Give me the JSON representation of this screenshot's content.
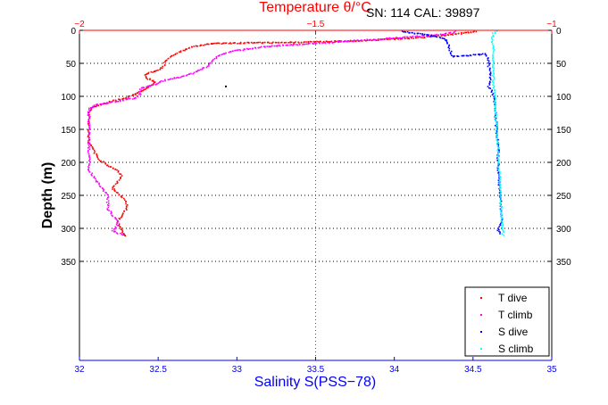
{
  "chart_data": {
    "type": "scatter",
    "title": "SN: 114  CAL: 39897",
    "ylabel": "Depth (m)",
    "xlabel_bottom": "Salinity S(PSS−78)",
    "xlabel_top": "Temperature θ/°C",
    "grid": true,
    "legend_position": "bottom-right",
    "ylim": [
      0,
      500
    ],
    "y_reversed": true,
    "y_ticks": [
      0,
      50,
      100,
      150,
      200,
      250,
      300,
      350
    ],
    "y_tick_labels": [
      "0",
      "50",
      "100",
      "150",
      "200",
      "250",
      "300",
      "350"
    ],
    "x_bottom_lim": [
      32,
      35
    ],
    "x_bottom_ticks": [
      32,
      32.5,
      33,
      33.5,
      34,
      34.5,
      35
    ],
    "x_bottom_tick_labels": [
      "32",
      "32.5",
      "33",
      "33.5",
      "34",
      "34.5",
      "35"
    ],
    "x_top_lim": [
      -2,
      -1
    ],
    "x_top_ticks": [
      -2,
      -1.5,
      -1
    ],
    "x_top_tick_labels": [
      "−2",
      "−1.5",
      "−1"
    ],
    "series": [
      {
        "name": "T dive",
        "axis": "top",
        "color": "#ff0000",
        "points": [
          [
            -1.16,
            2
          ],
          [
            -1.22,
            7
          ],
          [
            -1.28,
            11
          ],
          [
            -1.35,
            14
          ],
          [
            -1.42,
            16
          ],
          [
            -1.52,
            18
          ],
          [
            -1.63,
            19
          ],
          [
            -1.72,
            20
          ],
          [
            -1.76,
            25
          ],
          [
            -1.79,
            33
          ],
          [
            -1.81,
            42
          ],
          [
            -1.82,
            48
          ],
          [
            -1.82,
            54
          ],
          [
            -1.83,
            60
          ],
          [
            -1.86,
            66
          ],
          [
            -1.86,
            72
          ],
          [
            -1.84,
            78
          ],
          [
            -1.85,
            84
          ],
          [
            -1.86,
            90
          ],
          [
            -1.88,
            96
          ],
          [
            -1.9,
            102
          ],
          [
            -1.93,
            107
          ],
          [
            -1.95,
            112
          ],
          [
            -1.97,
            116
          ],
          [
            -1.98,
            125
          ],
          [
            -1.98,
            140
          ],
          [
            -1.98,
            155
          ],
          [
            -1.98,
            170
          ],
          [
            -1.97,
            182
          ],
          [
            -1.96,
            195
          ],
          [
            -1.94,
            205
          ],
          [
            -1.92,
            212
          ],
          [
            -1.91,
            220
          ],
          [
            -1.92,
            230
          ],
          [
            -1.93,
            240
          ],
          [
            -1.91,
            252
          ],
          [
            -1.9,
            262
          ],
          [
            -1.9,
            270
          ],
          [
            -1.91,
            280
          ],
          [
            -1.92,
            290
          ],
          [
            -1.91,
            300
          ],
          [
            -1.91,
            307
          ],
          [
            -1.9,
            312
          ]
        ]
      },
      {
        "name": "T climb",
        "axis": "top",
        "color": "#ff00ff",
        "points": [
          [
            -1.91,
            310
          ],
          [
            -1.93,
            303
          ],
          [
            -1.92,
            296
          ],
          [
            -1.92,
            288
          ],
          [
            -1.93,
            280
          ],
          [
            -1.94,
            270
          ],
          [
            -1.94,
            262
          ],
          [
            -1.94,
            250
          ],
          [
            -1.95,
            242
          ],
          [
            -1.96,
            232
          ],
          [
            -1.97,
            222
          ],
          [
            -1.98,
            212
          ],
          [
            -1.98,
            200
          ],
          [
            -1.98,
            185
          ],
          [
            -1.98,
            170
          ],
          [
            -1.98,
            155
          ],
          [
            -1.98,
            140
          ],
          [
            -1.98,
            128
          ],
          [
            -1.98,
            118
          ],
          [
            -1.96,
            112
          ],
          [
            -1.92,
            108
          ],
          [
            -1.88,
            102
          ],
          [
            -1.87,
            95
          ],
          [
            -1.87,
            88
          ],
          [
            -1.84,
            82
          ],
          [
            -1.82,
            76
          ],
          [
            -1.78,
            70
          ],
          [
            -1.75,
            62
          ],
          [
            -1.73,
            55
          ],
          [
            -1.72,
            48
          ],
          [
            -1.71,
            40
          ],
          [
            -1.68,
            32
          ],
          [
            -1.62,
            26
          ],
          [
            -1.55,
            22
          ],
          [
            -1.46,
            18
          ],
          [
            -1.36,
            13
          ],
          [
            -1.26,
            8
          ],
          [
            -1.21,
            4
          ],
          [
            -1.2,
            1
          ]
        ]
      },
      {
        "name": "S dive",
        "axis": "bottom",
        "color": "#0000ff",
        "points": [
          [
            34.05,
            2
          ],
          [
            34.15,
            5
          ],
          [
            34.24,
            8
          ],
          [
            34.31,
            12
          ],
          [
            34.34,
            18
          ],
          [
            34.35,
            26
          ],
          [
            34.36,
            34
          ],
          [
            34.37,
            40
          ],
          [
            34.58,
            36
          ],
          [
            34.6,
            45
          ],
          [
            34.6,
            55
          ],
          [
            34.61,
            65
          ],
          [
            34.61,
            75
          ],
          [
            34.6,
            85
          ],
          [
            34.62,
            92
          ],
          [
            34.63,
            100
          ],
          [
            34.64,
            120
          ],
          [
            34.65,
            150
          ],
          [
            34.66,
            180
          ],
          [
            34.66,
            210
          ],
          [
            34.67,
            240
          ],
          [
            34.68,
            270
          ],
          [
            34.68,
            290
          ],
          [
            34.66,
            303
          ],
          [
            34.68,
            310
          ]
        ]
      },
      {
        "name": "S climb",
        "axis": "bottom",
        "color": "#00ffff",
        "points": [
          [
            34.69,
            310
          ],
          [
            34.69,
            300
          ],
          [
            34.68,
            280
          ],
          [
            34.68,
            260
          ],
          [
            34.67,
            240
          ],
          [
            34.67,
            220
          ],
          [
            34.66,
            200
          ],
          [
            34.66,
            180
          ],
          [
            34.65,
            160
          ],
          [
            34.65,
            140
          ],
          [
            34.64,
            120
          ],
          [
            34.64,
            100
          ],
          [
            34.63,
            80
          ],
          [
            34.63,
            60
          ],
          [
            34.63,
            45
          ],
          [
            34.63,
            30
          ],
          [
            34.62,
            15
          ],
          [
            34.63,
            5
          ],
          [
            34.66,
            1
          ]
        ]
      },
      {
        "axis": "bottom",
        "color": "#000000",
        "points": [
          [
            32.93,
            85
          ]
        ]
      }
    ]
  }
}
